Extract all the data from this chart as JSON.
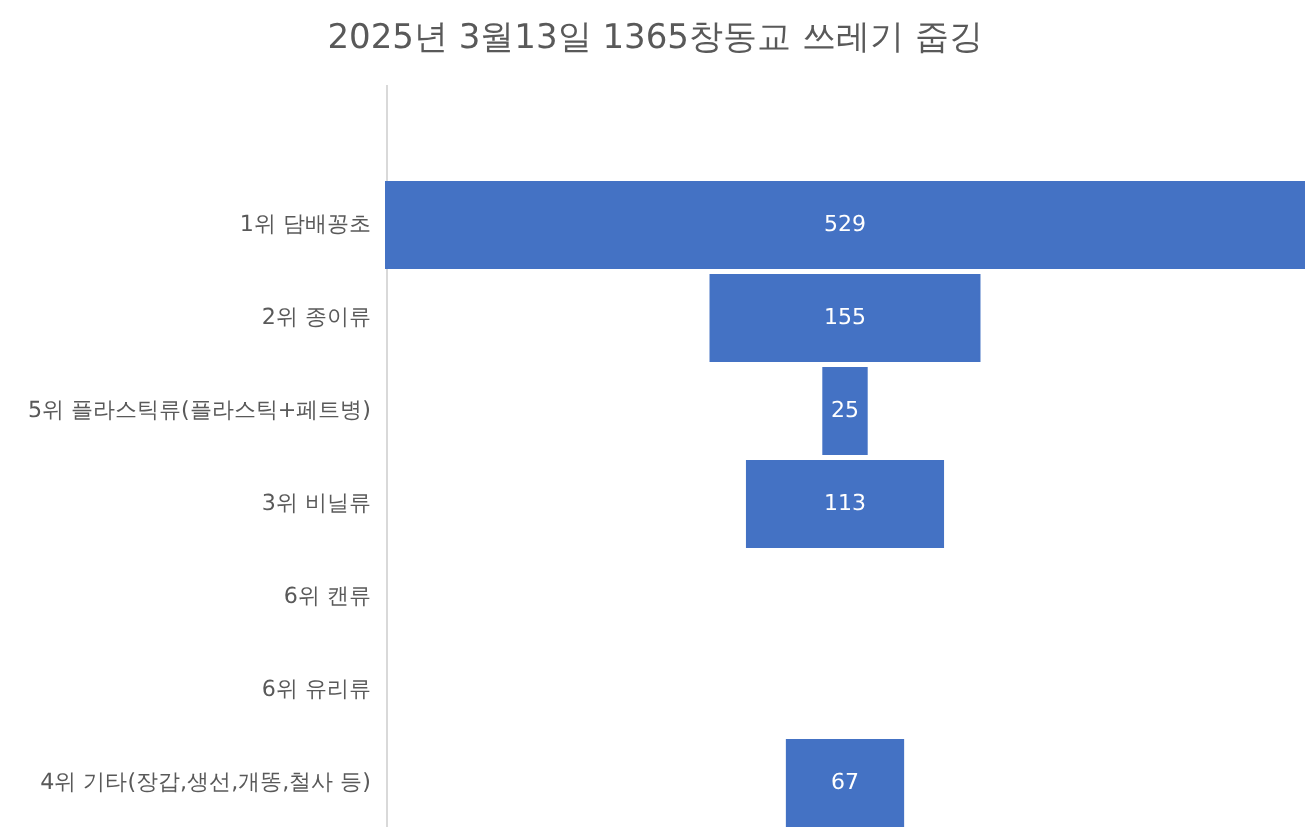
{
  "chart_data": {
    "type": "other",
    "title": "2025년 3월13일 1365창동교 쓰레기 줍깅",
    "categories": [
      "1위 담배꽁초",
      "2위 종이류",
      "5위 플라스틱류(플라스틱+페트병)",
      "3위 비닐류",
      "6위 캔류",
      "6위 유리류",
      "4위 기타(장갑,생선,개똥,철사 등)"
    ],
    "values": [
      529,
      155,
      25,
      113,
      null,
      null,
      67
    ],
    "value_labels": [
      "529",
      "155",
      "25",
      "113",
      null,
      null,
      "67"
    ],
    "color": "#4472c4"
  }
}
